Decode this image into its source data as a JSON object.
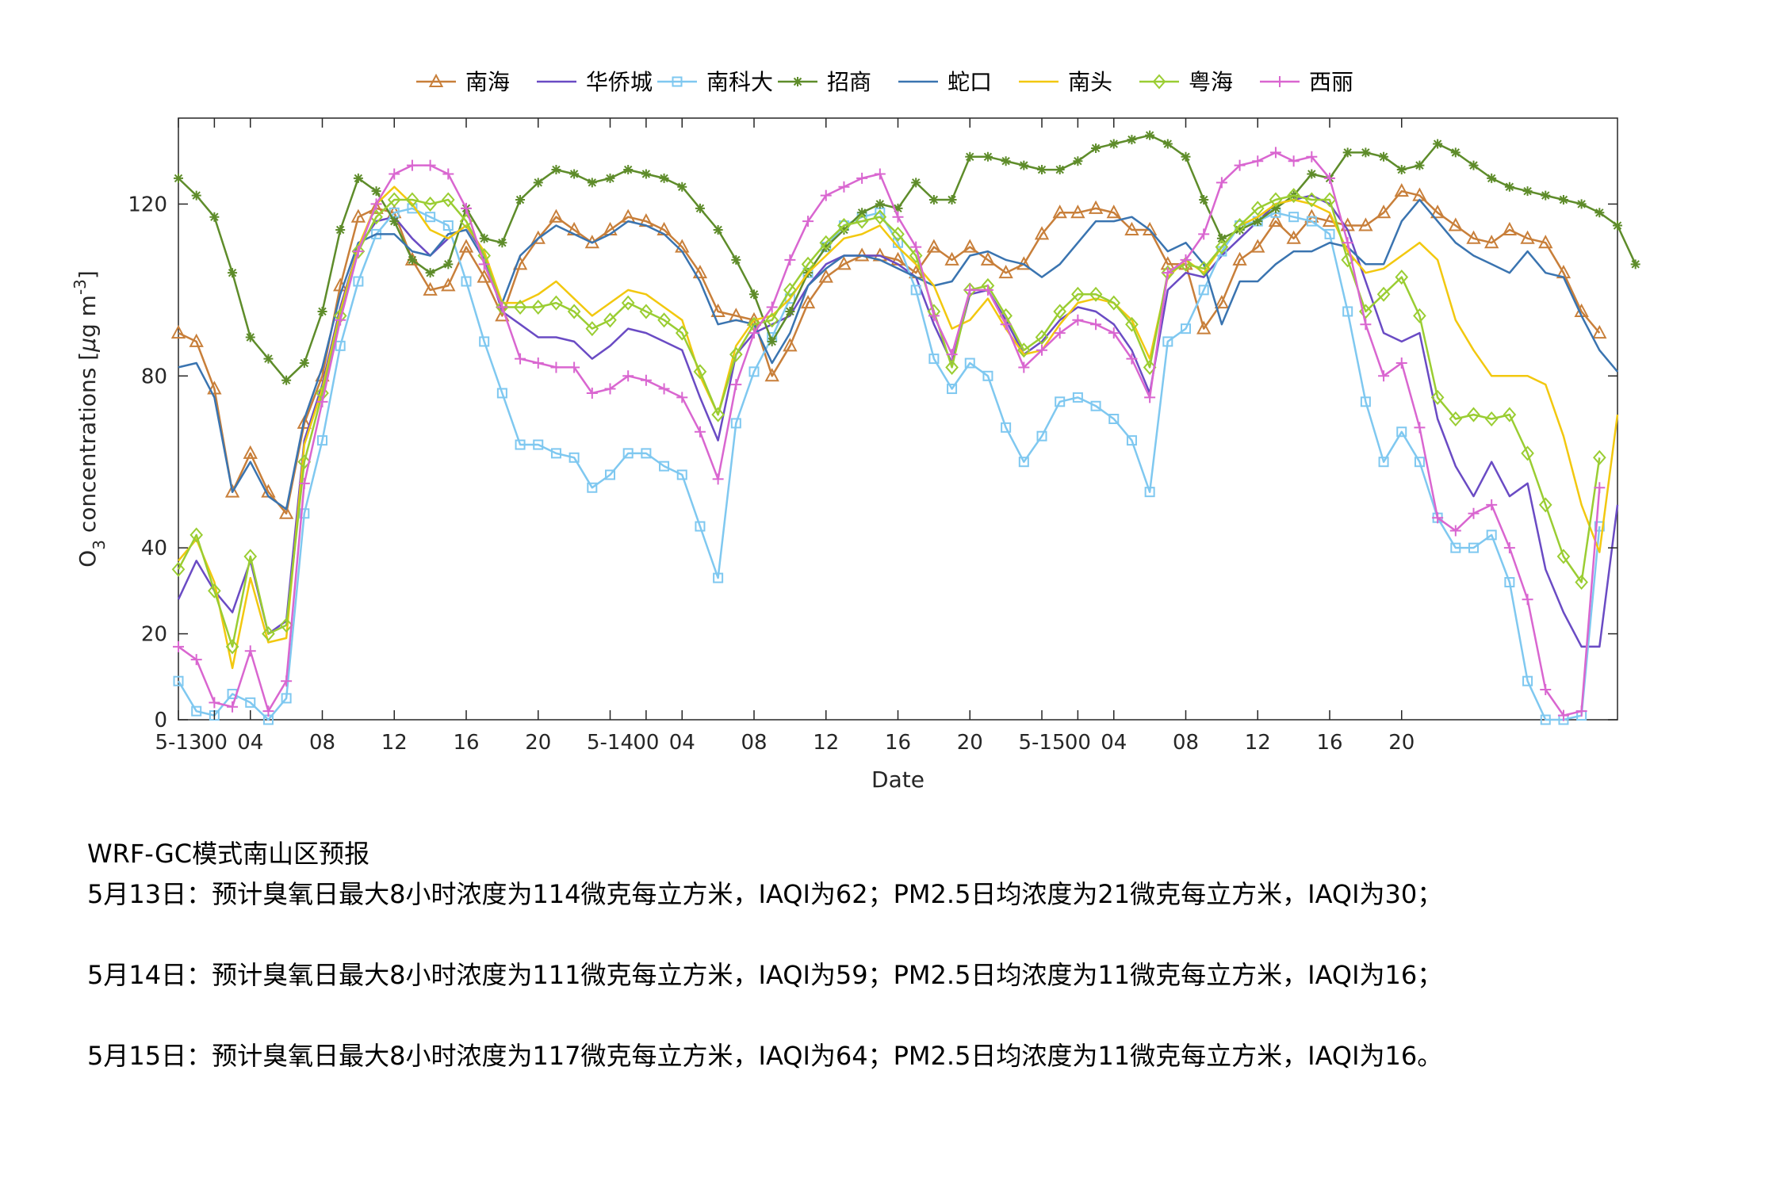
{
  "chart_data": {
    "type": "line",
    "title": "",
    "xlabel": "Date",
    "ylabel_main": "O",
    "ylabel_sub": "3",
    "ylabel_rest": " concentrations [",
    "ylabel_unit_mu": "μ",
    "ylabel_unit_g": "g m",
    "ylabel_unit_sup": "-3",
    "ylabel_close": "]",
    "ylim": [
      0,
      140
    ],
    "y_ticks": [
      0,
      20,
      40,
      80,
      120
    ],
    "x_range": [
      0,
      80
    ],
    "x_ticks": [
      {
        "x": 0,
        "label": "5-13"
      },
      {
        "x": 2,
        "label": "00"
      },
      {
        "x": 4,
        "label": "04"
      },
      {
        "x": 8,
        "label": "08"
      },
      {
        "x": 12,
        "label": "12"
      },
      {
        "x": 16,
        "label": "16"
      },
      {
        "x": 20,
        "label": "20"
      },
      {
        "x": 24,
        "label": "5-14"
      },
      {
        "x": 26,
        "label": "00"
      },
      {
        "x": 28,
        "label": "04"
      },
      {
        "x": 32,
        "label": "08"
      },
      {
        "x": 36,
        "label": "12"
      },
      {
        "x": 40,
        "label": "16"
      },
      {
        "x": 44,
        "label": "20"
      },
      {
        "x": 48,
        "label": "5-15"
      },
      {
        "x": 50,
        "label": "00"
      },
      {
        "x": 52,
        "label": "04"
      },
      {
        "x": 56,
        "label": "08"
      },
      {
        "x": 60,
        "label": "12"
      },
      {
        "x": 64,
        "label": "16"
      },
      {
        "x": 68,
        "label": "20"
      }
    ],
    "grid": false,
    "legend_position": "top",
    "series": [
      {
        "name": "南海",
        "color": "#C87F3A",
        "marker": "triangle",
        "values": [
          90,
          88,
          77,
          53,
          62,
          53,
          48,
          69,
          80,
          101,
          117,
          119,
          118,
          107,
          100,
          101,
          110,
          103,
          94,
          106,
          112,
          117,
          114,
          111,
          114,
          117,
          116,
          114,
          110,
          104,
          95,
          94,
          93,
          80,
          87,
          97,
          103,
          106,
          108,
          108,
          107,
          104,
          110,
          107,
          110,
          107,
          104,
          106,
          113,
          118,
          118,
          119,
          118,
          114,
          114,
          106,
          106,
          91,
          97,
          107,
          110,
          116,
          112,
          117,
          116,
          115,
          115,
          118,
          123,
          122,
          118,
          115,
          112,
          111,
          114,
          112,
          111,
          104,
          95,
          90
        ]
      },
      {
        "name": "华侨城",
        "color": "#6A4BC4",
        "marker": "none",
        "values": [
          28,
          37,
          30,
          25,
          37,
          20,
          23,
          65,
          78,
          96,
          110,
          116,
          117,
          112,
          108,
          112,
          115,
          108,
          95,
          92,
          89,
          89,
          88,
          84,
          87,
          91,
          90,
          88,
          86,
          75,
          65,
          85,
          90,
          92,
          94,
          101,
          106,
          108,
          108,
          108,
          106,
          103,
          92,
          83,
          99,
          100,
          93,
          85,
          88,
          93,
          96,
          95,
          92,
          86,
          76,
          100,
          104,
          103,
          108,
          112,
          116,
          120,
          121,
          122,
          120,
          114,
          102,
          90,
          88,
          90,
          70,
          59,
          52,
          60,
          52,
          55,
          35,
          25,
          17,
          17,
          50
        ]
      },
      {
        "name": "南科大",
        "color": "#7FC8F0",
        "marker": "square",
        "values": [
          9,
          2,
          1,
          6,
          4,
          0,
          5,
          48,
          65,
          87,
          102,
          113,
          118,
          119,
          117,
          115,
          102,
          88,
          76,
          64,
          64,
          62,
          61,
          54,
          57,
          62,
          62,
          59,
          57,
          45,
          33,
          69,
          81,
          89,
          98,
          104,
          110,
          115,
          117,
          118,
          111,
          100,
          84,
          77,
          83,
          80,
          68,
          60,
          66,
          74,
          75,
          73,
          70,
          65,
          53,
          88,
          91,
          100,
          109,
          115,
          116,
          118,
          117,
          116,
          113,
          95,
          74,
          60,
          67,
          60,
          47,
          40,
          40,
          43,
          32,
          9,
          0,
          0,
          1,
          45
        ]
      },
      {
        "name": "招商",
        "color": "#5E8C2A",
        "marker": "star",
        "values": [
          126,
          122,
          117,
          104,
          89,
          84,
          79,
          83,
          95,
          114,
          126,
          123,
          116,
          107,
          104,
          106,
          119,
          112,
          111,
          121,
          125,
          128,
          127,
          125,
          126,
          128,
          127,
          126,
          124,
          119,
          114,
          107,
          99,
          88,
          95,
          104,
          110,
          114,
          118,
          120,
          119,
          125,
          121,
          121,
          131,
          131,
          130,
          129,
          128,
          128,
          130,
          133,
          134,
          135,
          136,
          134,
          131,
          121,
          112,
          114,
          116,
          119,
          122,
          127,
          126,
          132,
          132,
          131,
          128,
          129,
          134,
          132,
          129,
          126,
          124,
          123,
          122,
          121,
          120,
          118,
          115,
          106
        ]
      },
      {
        "name": "蛇口",
        "color": "#3A74B0",
        "marker": "none",
        "values": [
          82,
          83,
          75,
          53,
          60,
          52,
          49,
          70,
          82,
          99,
          111,
          113,
          113,
          109,
          108,
          113,
          114,
          107,
          97,
          108,
          112,
          115,
          113,
          111,
          113,
          116,
          115,
          113,
          109,
          102,
          92,
          93,
          92,
          83,
          90,
          101,
          105,
          108,
          108,
          107,
          105,
          103,
          101,
          102,
          108,
          109,
          107,
          106,
          103,
          106,
          111,
          116,
          116,
          117,
          114,
          109,
          111,
          106,
          92,
          102,
          102,
          106,
          109,
          109,
          111,
          110,
          106,
          106,
          116,
          121,
          116,
          111,
          108,
          106,
          104,
          109,
          104,
          103,
          94,
          86,
          81
        ]
      },
      {
        "name": "南头",
        "color": "#F2C80F",
        "marker": "none",
        "values": [
          37,
          42,
          32,
          12,
          33,
          18,
          19,
          64,
          77,
          95,
          110,
          120,
          124,
          120,
          114,
          112,
          115,
          109,
          97,
          97,
          99,
          102,
          98,
          94,
          97,
          100,
          99,
          96,
          93,
          80,
          71,
          87,
          93,
          94,
          98,
          104,
          108,
          112,
          113,
          115,
          110,
          106,
          101,
          91,
          93,
          98,
          91,
          85,
          86,
          92,
          97,
          98,
          97,
          93,
          84,
          103,
          107,
          104,
          110,
          115,
          117,
          120,
          121,
          120,
          118,
          109,
          104,
          105,
          108,
          111,
          107,
          93,
          86,
          80,
          80,
          80,
          78,
          66,
          50,
          39,
          71
        ]
      },
      {
        "name": "粤海",
        "color": "#9ACD32",
        "marker": "diamond",
        "values": [
          35,
          43,
          30,
          17,
          38,
          20,
          22,
          60,
          76,
          94,
          109,
          117,
          121,
          121,
          120,
          121,
          116,
          108,
          96,
          96,
          96,
          97,
          95,
          91,
          93,
          97,
          95,
          93,
          90,
          81,
          71,
          85,
          92,
          93,
          100,
          106,
          111,
          115,
          116,
          117,
          113,
          108,
          95,
          82,
          100,
          101,
          94,
          86,
          89,
          95,
          99,
          99,
          97,
          92,
          82,
          104,
          106,
          105,
          110,
          115,
          119,
          121,
          122,
          121,
          121,
          107,
          95,
          99,
          103,
          94,
          75,
          70,
          71,
          70,
          71,
          62,
          50,
          38,
          32,
          61
        ]
      },
      {
        "name": "西丽",
        "color": "#D966D0",
        "marker": "plus",
        "values": [
          17,
          14,
          4,
          3,
          16,
          2,
          9,
          55,
          74,
          93,
          109,
          120,
          127,
          129,
          129,
          127,
          119,
          106,
          96,
          84,
          83,
          82,
          82,
          76,
          77,
          80,
          79,
          77,
          75,
          67,
          56,
          78,
          90,
          96,
          107,
          116,
          122,
          124,
          126,
          127,
          117,
          110,
          94,
          85,
          100,
          100,
          92,
          82,
          86,
          90,
          93,
          92,
          90,
          84,
          75,
          104,
          107,
          113,
          125,
          129,
          130,
          132,
          130,
          131,
          126,
          111,
          92,
          80,
          83,
          68,
          47,
          44,
          48,
          50,
          40,
          28,
          7,
          1,
          2,
          54
        ]
      }
    ]
  },
  "forecast": {
    "title": "WRF-GC模式南山区预报",
    "lines": [
      "5月13日：预计臭氧日最大8小时浓度为114微克每立方米，IAQI为62；PM2.5日均浓度为21微克每立方米，IAQI为30；",
      "5月14日：预计臭氧日最大8小时浓度为111微克每立方米，IAQI为59；PM2.5日均浓度为11微克每立方米，IAQI为16；",
      "5月15日：预计臭氧日最大8小时浓度为117微克每立方米，IAQI为64；PM2.5日均浓度为11微克每立方米，IAQI为16。"
    ]
  }
}
